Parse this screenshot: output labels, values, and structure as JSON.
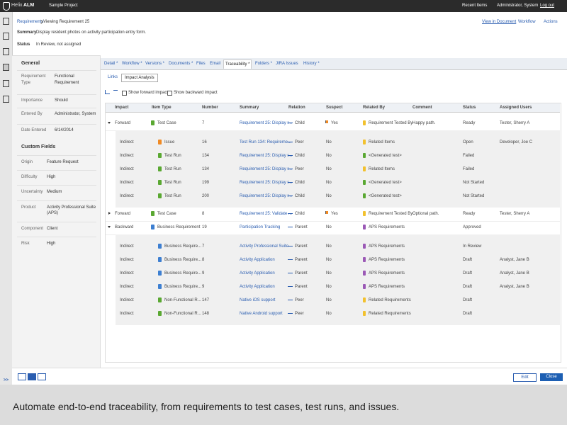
{
  "header": {
    "brand": "Helix",
    "product": "ALM",
    "project": "Sample Project",
    "recent": "Recent Items",
    "user": "Administrator, System",
    "logout": "Log out"
  },
  "sidebar": {
    "expand": ">>"
  },
  "breadcrumb": {
    "parent": "Requirements",
    "current": "Viewing Requirement 25"
  },
  "actions": {
    "view": "View in Document",
    "workflow": "Workflow",
    "actions": "Actions"
  },
  "summary": {
    "label": "Summary",
    "value": "Display resident photos on activity participation entry form."
  },
  "status": {
    "label": "Status",
    "value": "In Review, not assigned"
  },
  "general": {
    "title": "General",
    "fields": [
      {
        "label": "Requirement Type",
        "value": "Functional Requirement"
      },
      {
        "label": "Importance",
        "value": "Should"
      },
      {
        "label": "Entered By",
        "value": "Administrator, System"
      },
      {
        "label": "Date Entered",
        "value": "6/14/2014"
      }
    ]
  },
  "custom": {
    "title": "Custom Fields",
    "fields": [
      {
        "label": "Origin",
        "value": "Feature Request"
      },
      {
        "label": "Difficulty",
        "value": "High"
      },
      {
        "label": "Uncertainty",
        "value": "Medium"
      },
      {
        "label": "Product",
        "value": "Activity Professional Suite (APS)"
      },
      {
        "label": "Component",
        "value": "Client"
      },
      {
        "label": "Risk",
        "value": "High"
      }
    ]
  },
  "tabs": {
    "items": [
      "Detail *",
      "Workflow *",
      "Versions *",
      "Documents *",
      "Files",
      "Email",
      "Traceability *",
      "Folders *",
      "JIRA Issues",
      "History *"
    ],
    "active": 6
  },
  "subtabs": {
    "items": [
      "Links",
      "Impact Analysis"
    ],
    "active": 1
  },
  "options": {
    "forward": "Show forward impact",
    "backward": "Show backward impact"
  },
  "grid": {
    "columns": [
      "Impact",
      "Item Type",
      "Number",
      "Summary",
      "Relation",
      "Suspect",
      "Related By",
      "Comment",
      "Status",
      "Assigned Users"
    ],
    "rows": [
      {
        "impact": "Forward",
        "type": "Test Case",
        "icon": "#5aa832",
        "number": 7,
        "summary": "Requirement 25: Display r...",
        "relation": "Child",
        "suspect": "Yes",
        "suspect_flag": "#f08a24",
        "related_by": "Requirement Tested By",
        "rel_color": "#f2c12e",
        "comment": "Happy path.",
        "status": "Ready",
        "assigned": "Tester, Sherry A",
        "expanded": true,
        "children": [
          {
            "impact": "Indirect",
            "type": "Issue",
            "icon": "#f08a24",
            "number": 16,
            "summary": "Test Run 134: Requireme...",
            "relation": "Peer",
            "suspect": "No",
            "related_by": "Related Items",
            "rel_color": "#f2c12e",
            "status": "Open",
            "assigned": "Developer, Joe C"
          },
          {
            "impact": "Indirect",
            "type": "Test Run",
            "icon": "#5aa832",
            "number": 134,
            "summary": "Requirement 25: Display r...",
            "relation": "Child",
            "suspect": "No",
            "related_by": "<Generated test>",
            "rel_color": "#5aa832",
            "status": "Failed"
          },
          {
            "impact": "Indirect",
            "type": "Test Run",
            "icon": "#5aa832",
            "number": 134,
            "summary": "Requirement 25: Display r...",
            "relation": "Peer",
            "suspect": "No",
            "related_by": "Related Items",
            "rel_color": "#f2c12e",
            "status": "Failed"
          },
          {
            "impact": "Indirect",
            "type": "Test Run",
            "icon": "#5aa832",
            "number": 199,
            "summary": "Requirement 25: Display r...",
            "relation": "Child",
            "suspect": "No",
            "related_by": "<Generated test>",
            "rel_color": "#5aa832",
            "status": "Not Started"
          },
          {
            "impact": "Indirect",
            "type": "Test Run",
            "icon": "#5aa832",
            "number": 200,
            "summary": "Requirement 25: Display r...",
            "relation": "Child",
            "suspect": "No",
            "related_by": "<Generated test>",
            "rel_color": "#5aa832",
            "status": "Not Started"
          }
        ]
      },
      {
        "impact": "Forward",
        "type": "Test Case",
        "icon": "#5aa832",
        "number": 8,
        "summary": "Requirement 25: Validate ...",
        "relation": "Child",
        "suspect": "Yes",
        "suspect_flag": "#f08a24",
        "related_by": "Requirement Tested By",
        "rel_color": "#f2c12e",
        "comment": "Optional path.",
        "status": "Ready",
        "assigned": "Tester, Sherry A",
        "expanded": false
      },
      {
        "impact": "Backward",
        "type": "Business Requirement",
        "icon": "#3d7fd1",
        "number": 19,
        "summary": "Participation Tracking",
        "relation": "Parent",
        "suspect": "No",
        "related_by": "APS Requirements",
        "rel_color": "#9b59b6",
        "status": "Approved",
        "expanded": true,
        "children": [
          {
            "impact": "Indirect",
            "type": "Business Require...",
            "icon": "#3d7fd1",
            "number": 7,
            "summary": "Activity Professional Suite",
            "relation": "Parent",
            "suspect": "No",
            "related_by": "APS Requirements",
            "rel_color": "#9b59b6",
            "status": "In Review"
          },
          {
            "impact": "Indirect",
            "type": "Business Require...",
            "icon": "#3d7fd1",
            "number": 8,
            "summary": "Activity Application",
            "relation": "Parent",
            "suspect": "No",
            "related_by": "APS Requirements",
            "rel_color": "#9b59b6",
            "status": "Draft",
            "assigned": "Analyst, Jane B"
          },
          {
            "impact": "Indirect",
            "type": "Business Require...",
            "icon": "#3d7fd1",
            "number": 9,
            "summary": "Activity Application",
            "relation": "Parent",
            "suspect": "No",
            "related_by": "APS Requirements",
            "rel_color": "#9b59b6",
            "status": "Draft",
            "assigned": "Analyst, Jane B"
          },
          {
            "impact": "Indirect",
            "type": "Business Require...",
            "icon": "#3d7fd1",
            "number": 9,
            "summary": "Activity Application",
            "relation": "Parent",
            "suspect": "No",
            "related_by": "APS Requirements",
            "rel_color": "#9b59b6",
            "status": "Draft",
            "assigned": "Analyst, Jane B"
          },
          {
            "impact": "Indirect",
            "type": "Non-Functional R...",
            "icon": "#5aa832",
            "number": 147,
            "summary": "Native iOS support",
            "relation": "Peer",
            "suspect": "No",
            "related_by": "Related Requirements",
            "rel_color": "#f2c12e",
            "status": "Draft"
          },
          {
            "impact": "Indirect",
            "type": "Non-Functional R...",
            "icon": "#5aa832",
            "number": 148,
            "summary": "Native Android support",
            "relation": "Peer",
            "suspect": "No",
            "related_by": "Related Requirements",
            "rel_color": "#f2c12e",
            "status": "Draft"
          }
        ]
      }
    ]
  },
  "buttons": {
    "edit": "Edit",
    "close": "Close"
  },
  "caption": "Automate end-to-end traceability, from requirements to test cases, test runs, and issues."
}
